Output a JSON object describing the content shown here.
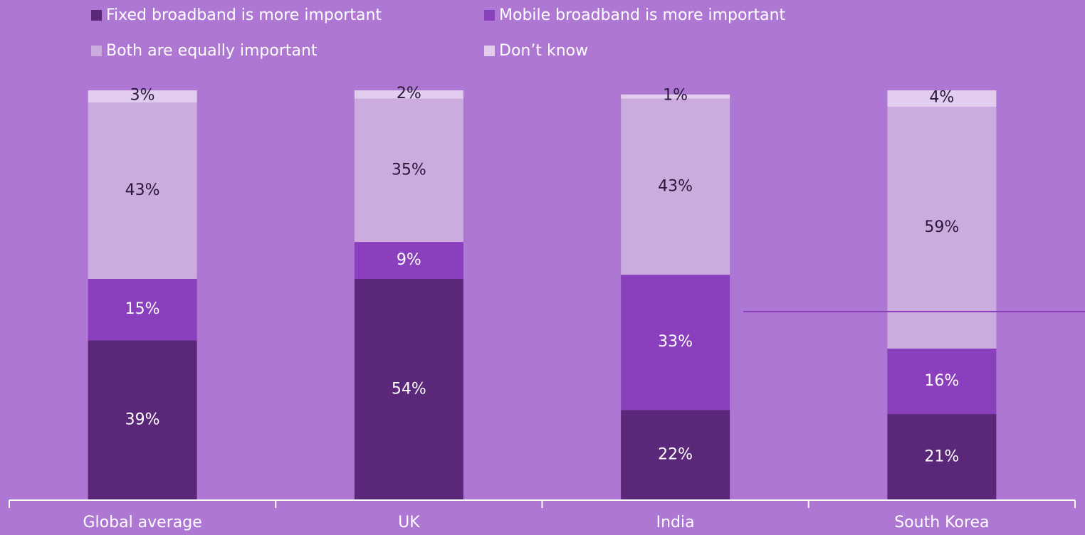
{
  "chart_data": {
    "type": "bar",
    "stacked": true,
    "categories": [
      "Global average",
      "UK",
      "India",
      "South Korea"
    ],
    "ylim": [
      0,
      100
    ],
    "grid": false,
    "legend_placement": "top",
    "series": [
      {
        "name": "Fixed broadband is more important",
        "values": [
          39,
          54,
          22,
          21
        ],
        "color": "#5b2778"
      },
      {
        "name": "Mobile broadband is more important",
        "values": [
          15,
          9,
          33,
          16
        ],
        "color": "#8a3fbc"
      },
      {
        "name": "Both are equally important",
        "values": [
          43,
          35,
          43,
          59
        ],
        "color": "#ccabdf"
      },
      {
        "name": "Don’t know",
        "values": [
          3,
          2,
          1,
          4
        ],
        "color": "#e2cdef"
      }
    ],
    "data_labels": [
      [
        "39%",
        "54%",
        "22%",
        "21%"
      ],
      [
        "15%",
        "9%",
        "33%",
        "16%"
      ],
      [
        "43%",
        "35%",
        "43%",
        "59%"
      ],
      [
        "3%",
        "2%",
        "1%",
        "4%"
      ]
    ]
  }
}
